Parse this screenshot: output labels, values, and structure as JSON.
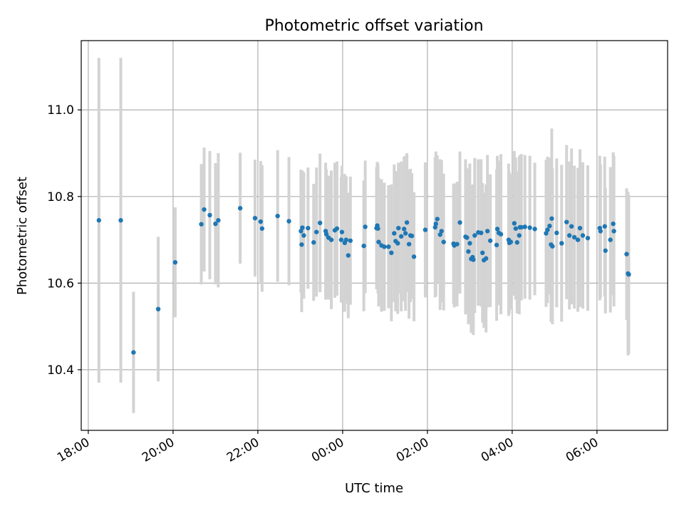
{
  "chart_data": {
    "type": "scatter",
    "title": "Photometric offset variation",
    "xlabel": "UTC time",
    "ylabel": "Photometric offset",
    "x_axis_kind": "time",
    "x_tick_labels": [
      "18:00",
      "20:00",
      "22:00",
      "00:00",
      "02:00",
      "04:00",
      "06:00"
    ],
    "y_ticks": [
      10.4,
      10.6,
      10.8,
      11.0
    ],
    "y_tick_labels": [
      "10.4",
      "10.6",
      "10.8",
      "11.0"
    ],
    "xlim": [
      "17:50",
      "07:40"
    ],
    "ylim": [
      10.26,
      11.16
    ],
    "grid": true,
    "legend": "none",
    "colors": {
      "point": "#1f77b4",
      "errorbar": "#d3d3d3",
      "grid": "#b0b0b0"
    },
    "series": [
      {
        "x": [
          "18:15",
          "18:46",
          "19:04",
          "19:39",
          "20:03",
          "20:40",
          "20:44",
          "20:52",
          "21:00",
          "21:04",
          "21:35",
          "21:56",
          "22:04",
          "22:06",
          "22:28",
          "22:44",
          "23:01",
          "23:02",
          "23:03",
          "23:05",
          "23:11",
          "23:19",
          "23:23",
          "23:28",
          "23:36",
          "23:37",
          "23:40",
          "23:44",
          "23:49",
          "23:52",
          "23:58",
          "23:59",
          "00:03",
          "00:05",
          "00:08",
          "00:11",
          "00:30",
          "00:32",
          "00:48",
          "00:49",
          "00:50",
          "00:51",
          "00:55",
          "00:59",
          "01:05",
          "01:09",
          "01:13",
          "01:15",
          "01:18",
          "01:19",
          "01:23",
          "01:27",
          "01:29",
          "01:31",
          "01:34",
          "01:36",
          "01:38",
          "01:41",
          "01:57",
          "02:11",
          "02:12",
          "02:14",
          "02:18",
          "02:20",
          "02:23",
          "02:37",
          "02:38",
          "02:42",
          "02:46",
          "02:54",
          "02:56",
          "02:58",
          "03:00",
          "03:02",
          "03:04",
          "03:05",
          "03:07",
          "03:12",
          "03:16",
          "03:18",
          "03:20",
          "03:23",
          "03:25",
          "03:29",
          "03:38",
          "03:39",
          "03:41",
          "03:44",
          "03:55",
          "03:56",
          "03:58",
          "04:03",
          "04:05",
          "04:07",
          "04:10",
          "04:11",
          "04:13",
          "04:18",
          "04:25",
          "04:32",
          "04:48",
          "04:50",
          "04:53",
          "04:55",
          "04:56",
          "04:57",
          "05:03",
          "05:10",
          "05:17",
          "05:21",
          "05:24",
          "05:28",
          "05:33",
          "05:36",
          "05:40",
          "05:47",
          "06:04",
          "06:05",
          "06:11",
          "06:12",
          "06:19",
          "06:23",
          "06:24",
          "06:42",
          "06:44",
          "06:45"
        ],
        "y": [
          10.745,
          10.745,
          10.44,
          10.54,
          10.648,
          10.736,
          10.77,
          10.757,
          10.737,
          10.745,
          10.773,
          10.75,
          10.742,
          10.726,
          10.755,
          10.743,
          10.72,
          10.689,
          10.728,
          10.71,
          10.727,
          10.694,
          10.718,
          10.739,
          10.72,
          10.713,
          10.705,
          10.7,
          10.722,
          10.726,
          10.7,
          10.718,
          10.693,
          10.7,
          10.664,
          10.698,
          10.686,
          10.73,
          10.727,
          10.733,
          10.726,
          10.695,
          10.687,
          10.684,
          10.684,
          10.67,
          10.715,
          10.697,
          10.692,
          10.727,
          10.708,
          10.725,
          10.715,
          10.74,
          10.69,
          10.71,
          10.709,
          10.661,
          10.723,
          10.729,
          10.737,
          10.748,
          10.712,
          10.72,
          10.695,
          10.691,
          10.687,
          10.69,
          10.74,
          10.707,
          10.705,
          10.673,
          10.692,
          10.656,
          10.66,
          10.654,
          10.71,
          10.717,
          10.716,
          10.67,
          10.653,
          10.657,
          10.72,
          10.698,
          10.688,
          10.725,
          10.716,
          10.713,
          10.7,
          10.693,
          10.695,
          10.738,
          10.726,
          10.694,
          10.71,
          10.729,
          10.729,
          10.73,
          10.728,
          10.725,
          10.715,
          10.723,
          10.732,
          10.689,
          10.749,
          10.685,
          10.716,
          10.692,
          10.741,
          10.71,
          10.731,
          10.706,
          10.7,
          10.727,
          10.71,
          10.704,
          10.727,
          10.72,
          10.731,
          10.675,
          10.7,
          10.737,
          10.72,
          10.667,
          10.622,
          10.62
        ],
        "yerr": [
          0.375,
          0.375,
          0.14,
          0.167,
          0.127,
          0.139,
          0.143,
          0.148,
          0.14,
          0.155,
          0.128,
          0.135,
          0.14,
          0.146,
          0.152,
          0.148,
          0.142,
          0.156,
          0.132,
          0.146,
          0.14,
          0.135,
          0.149,
          0.16,
          0.158,
          0.15,
          0.143,
          0.16,
          0.156,
          0.155,
          0.145,
          0.153,
          0.159,
          0.147,
          0.145,
          0.148,
          0.151,
          0.153,
          0.141,
          0.147,
          0.15,
          0.149,
          0.153,
          0.148,
          0.142,
          0.158,
          0.159,
          0.162,
          0.163,
          0.151,
          0.173,
          0.167,
          0.179,
          0.16,
          0.172,
          0.154,
          0.145,
          0.149,
          0.156,
          0.162,
          0.167,
          0.147,
          0.174,
          0.164,
          0.158,
          0.139,
          0.143,
          0.144,
          0.164,
          0.179,
          0.16,
          0.168,
          0.184,
          0.171,
          0.158,
          0.174,
          0.179,
          0.169,
          0.17,
          0.161,
          0.156,
          0.171,
          0.176,
          0.153,
          0.175,
          0.169,
          0.167,
          0.185,
          0.176,
          0.164,
          0.156,
          0.167,
          0.164,
          0.164,
          0.182,
          0.167,
          0.169,
          0.166,
          0.166,
          0.153,
          0.17,
          0.169,
          0.158,
          0.179,
          0.208,
          0.18,
          0.172,
          0.181,
          0.178,
          0.171,
          0.18,
          0.165,
          0.166,
          0.182,
          0.169,
          0.168,
          0.167,
          0.154,
          0.161,
          0.145,
          0.168,
          0.165,
          0.174,
          0.152,
          0.189,
          0.183
        ]
      }
    ]
  }
}
